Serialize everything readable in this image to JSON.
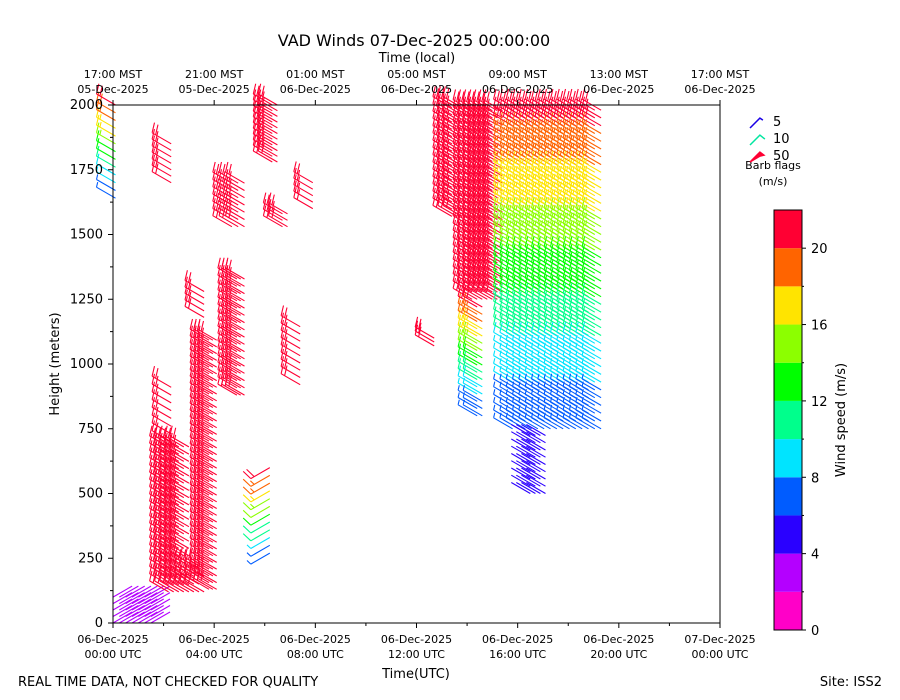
{
  "chart_data": {
    "type": "scatter",
    "subtype": "wind-barbs",
    "title": "VAD Winds 07-Dec-2025 00:00:00",
    "top_axis_title": "Time (local)",
    "xlabel": "Time(UTC)",
    "ylabel": "Height (meters)",
    "footer_left": "REAL TIME DATA, NOT CHECKED FOR QUALITY",
    "footer_right": "Site: ISS2",
    "x_range_hours": [
      0,
      24
    ],
    "ylim": [
      0,
      2000
    ],
    "y_ticks": [
      0,
      250,
      500,
      750,
      1000,
      1250,
      1500,
      1750,
      2000
    ],
    "x_ticks_utc": [
      {
        "h": 0,
        "line1": "06-Dec-2025",
        "line2": "00:00 UTC"
      },
      {
        "h": 4,
        "line1": "06-Dec-2025",
        "line2": "04:00 UTC"
      },
      {
        "h": 8,
        "line1": "06-Dec-2025",
        "line2": "08:00 UTC"
      },
      {
        "h": 12,
        "line1": "06-Dec-2025",
        "line2": "12:00 UTC"
      },
      {
        "h": 16,
        "line1": "06-Dec-2025",
        "line2": "16:00 UTC"
      },
      {
        "h": 20,
        "line1": "06-Dec-2025",
        "line2": "20:00 UTC"
      },
      {
        "h": 24,
        "line1": "07-Dec-2025",
        "line2": "00:00 UTC"
      }
    ],
    "x_ticks_local": [
      {
        "h": 0,
        "line1": "17:00 MST",
        "line2": "05-Dec-2025"
      },
      {
        "h": 4,
        "line1": "21:00 MST",
        "line2": "05-Dec-2025"
      },
      {
        "h": 8,
        "line1": "01:00 MST",
        "line2": "06-Dec-2025"
      },
      {
        "h": 12,
        "line1": "05:00 MST",
        "line2": "06-Dec-2025"
      },
      {
        "h": 16,
        "line1": "09:00 MST",
        "line2": "06-Dec-2025"
      },
      {
        "h": 20,
        "line1": "13:00 MST",
        "line2": "06-Dec-2025"
      },
      {
        "h": 24,
        "line1": "17:00 MST",
        "line2": "06-Dec-2025"
      }
    ],
    "barb_legend": {
      "items": [
        {
          "speed": 5,
          "label": "5",
          "color": "#1a00e6"
        },
        {
          "speed": 10,
          "label": "10",
          "color": "#00e6a0"
        },
        {
          "speed": 50,
          "label": "50",
          "color": "#ff0033"
        }
      ],
      "caption_line1": "Barb flags",
      "caption_line2": "(m/s)"
    },
    "colorbar": {
      "label": "Wind speed (m/s)",
      "min": 0,
      "max": 22,
      "ticks": [
        0,
        4,
        8,
        12,
        16,
        20
      ],
      "bins": [
        {
          "from": 0,
          "to": 2,
          "color": "#ff00c8"
        },
        {
          "from": 2,
          "to": 4,
          "color": "#b400ff"
        },
        {
          "from": 4,
          "to": 6,
          "color": "#2a00ff"
        },
        {
          "from": 6,
          "to": 8,
          "color": "#005cff"
        },
        {
          "from": 8,
          "to": 10,
          "color": "#00e4ff"
        },
        {
          "from": 10,
          "to": 12,
          "color": "#00ff8c"
        },
        {
          "from": 12,
          "to": 14,
          "color": "#00ff00"
        },
        {
          "from": 14,
          "to": 16,
          "color": "#8cff00"
        },
        {
          "from": 16,
          "to": 18,
          "color": "#ffe400"
        },
        {
          "from": 18,
          "to": 20,
          "color": "#ff6400"
        },
        {
          "from": 20,
          "to": 22,
          "color": "#ff0033"
        }
      ]
    },
    "series": [
      {
        "name": "00h-01h light",
        "t0": 0.0,
        "t1": 1.6,
        "dt": 0.25,
        "h0": 0,
        "h1": 100,
        "dh": 25,
        "speed": 3,
        "dir": 60
      },
      {
        "name": "00h upper",
        "t0": 0.1,
        "t1": 0.1,
        "dt": 0.25,
        "h0": 1640,
        "h1": 2000,
        "dh": 30,
        "speed": 21,
        "dir": 300,
        "color_by_height": true
      },
      {
        "name": "02h lower",
        "t0": 2.2,
        "t1": 3.1,
        "dt": 0.2,
        "h0": 120,
        "h1": 700,
        "dh": 28,
        "speed": 22,
        "dir": 300
      },
      {
        "name": "02h mid",
        "t0": 2.3,
        "t1": 2.3,
        "dt": 0.25,
        "h0": 700,
        "h1": 930,
        "dh": 30,
        "speed": 22,
        "dir": 300
      },
      {
        "name": "02h upper",
        "t0": 2.3,
        "t1": 2.3,
        "dt": 0.25,
        "h0": 1700,
        "h1": 1850,
        "dh": 25,
        "speed": 22,
        "dir": 300
      },
      {
        "name": "03h lower",
        "t0": 3.2,
        "t1": 3.6,
        "dt": 0.2,
        "h0": 120,
        "h1": 220,
        "dh": 30,
        "speed": 22,
        "dir": 300
      },
      {
        "name": "04h column",
        "t0": 3.8,
        "t1": 4.1,
        "dt": 0.15,
        "h0": 130,
        "h1": 1100,
        "dh": 26,
        "speed": 22,
        "dir": 300
      },
      {
        "name": "04h upper",
        "t0": 3.6,
        "t1": 3.6,
        "dt": 0.25,
        "h0": 1180,
        "h1": 1280,
        "dh": 25,
        "speed": 22,
        "dir": 300
      },
      {
        "name": "05h column",
        "t0": 4.9,
        "t1": 5.2,
        "dt": 0.15,
        "h0": 880,
        "h1": 1330,
        "dh": 28,
        "speed": 22,
        "dir": 300
      },
      {
        "name": "05h upper",
        "t0": 4.7,
        "t1": 5.2,
        "dt": 0.25,
        "h0": 1530,
        "h1": 1700,
        "dh": 28,
        "speed": 22,
        "dir": 300
      },
      {
        "name": "06h low level",
        "t0": 6.2,
        "t1": 6.2,
        "dt": 0.25,
        "h0": 270,
        "h1": 600,
        "dh": 30,
        "speed": 12,
        "dir": 240,
        "color_by_height": true
      },
      {
        "name": "06h high",
        "t0": 6.3,
        "t1": 6.5,
        "dt": 0.2,
        "h0": 1780,
        "h1": 2000,
        "dh": 22,
        "speed": 22,
        "dir": 300
      },
      {
        "name": "07h upper",
        "t0": 6.7,
        "t1": 6.9,
        "dt": 0.2,
        "h0": 1530,
        "h1": 1590,
        "dh": 25,
        "speed": 22,
        "dir": 300
      },
      {
        "name": "07h mid",
        "t0": 7.4,
        "t1": 7.4,
        "dt": 0.25,
        "h0": 920,
        "h1": 1150,
        "dh": 28,
        "speed": 22,
        "dir": 300
      },
      {
        "name": "08h upper",
        "t0": 7.9,
        "t1": 7.9,
        "dt": 0.25,
        "h0": 1600,
        "h1": 1700,
        "dh": 25,
        "speed": 22,
        "dir": 300
      },
      {
        "name": "13h",
        "t0": 12.7,
        "t1": 12.7,
        "dt": 0.25,
        "h0": 1070,
        "h1": 1100,
        "dh": 15,
        "speed": 22,
        "dir": 300
      },
      {
        "name": "13h upper",
        "t0": 13.4,
        "t1": 13.8,
        "dt": 0.2,
        "h0": 1570,
        "h1": 2000,
        "dh": 28,
        "speed": 22,
        "dir": 300
      },
      {
        "name": "14-15h upper",
        "t0": 14.2,
        "t1": 15.4,
        "dt": 0.2,
        "h0": 1250,
        "h1": 2000,
        "dh": 28,
        "speed": 22,
        "dir": 300
      },
      {
        "name": "14-15h lower",
        "t0": 14.4,
        "t1": 14.6,
        "dt": 0.2,
        "h0": 800,
        "h1": 1240,
        "dh": 28,
        "speed": 18,
        "dir": 300,
        "color_by_height": true
      },
      {
        "name": "16-19h mixed",
        "t0": 15.8,
        "t1": 19.4,
        "dt": 0.25,
        "h0": 750,
        "h1": 2000,
        "dh": 30,
        "speed": 12,
        "dir": 300,
        "color_by_height": true
      },
      {
        "name": "17h low",
        "t0": 16.5,
        "t1": 17.2,
        "dt": 0.2,
        "h0": 500,
        "h1": 740,
        "dh": 28,
        "speed": 4,
        "dir": 300
      }
    ]
  }
}
